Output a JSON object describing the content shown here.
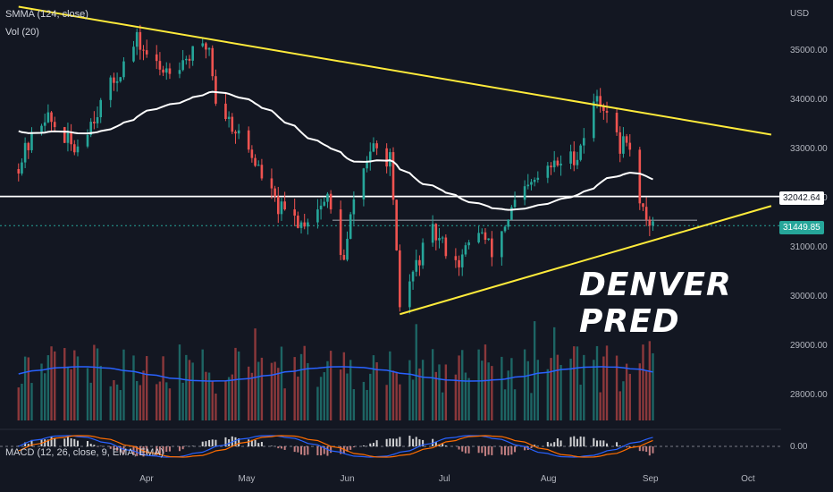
{
  "header": {
    "indicator_smma": "SMMA (124, close)",
    "indicator_vol": "Vol (20)",
    "indicator_macd": "MACD (12, 26, close, 9, EMA, EMA)",
    "currency": "USD"
  },
  "watermark": "DENVER PRED",
  "price_labels": {
    "resistance": "32042.64",
    "current": "31449.85",
    "macd_zero": "0.00"
  },
  "colors": {
    "background": "#131722",
    "up": "#26a69a",
    "down": "#ef5350",
    "trendline": "#ffeb3b",
    "smma": "#ffffff",
    "volume_ma": "#2962ff",
    "macd_line": "#2962ff",
    "signal_line": "#ff6d00"
  },
  "chart_data": {
    "type": "candlestick",
    "y_ticks": [
      "35000.00",
      "34000.00",
      "33000.00",
      "32000.00",
      "31000.00",
      "30000.00",
      "29000.00",
      "28000.00"
    ],
    "x_ticks": [
      "Apr",
      "May",
      "Jun",
      "Jul",
      "Aug",
      "Sep",
      "Oct"
    ],
    "ylim": [
      27000,
      35700
    ],
    "horizontal_levels": [
      32042.64,
      31560
    ],
    "current_price": 31449.85,
    "trendlines": [
      {
        "from": [
          "2022-02-21",
          35900
        ],
        "to": [
          "2022-10-08",
          33300
        ]
      },
      {
        "from": [
          "2022-06-17",
          29650
        ],
        "to": [
          "2022-10-08",
          31850
        ]
      }
    ]
  }
}
